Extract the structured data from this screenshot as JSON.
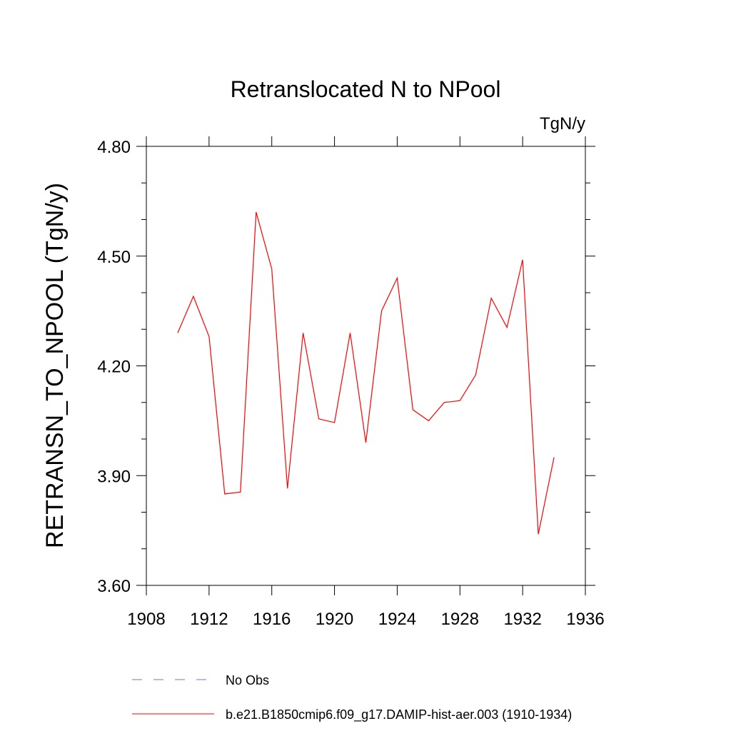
{
  "chart_data": {
    "type": "line",
    "title": "Retranslocated N to NPool",
    "units_label": "TgN/y",
    "ylabel": "RETRANSN_TO_NPOOL  (TgN/y)",
    "xlabel": "",
    "xlim": [
      1908,
      1936
    ],
    "ylim": [
      3.6,
      4.8
    ],
    "x_ticks": [
      1908,
      1912,
      1916,
      1920,
      1924,
      1928,
      1932,
      1936
    ],
    "x_tick_labels": [
      "1908",
      "1912",
      "1916",
      "1920",
      "1924",
      "1928",
      "1932",
      "1936"
    ],
    "y_ticks": [
      3.6,
      3.9,
      4.2,
      4.5,
      4.8
    ],
    "y_tick_labels": [
      "3.60",
      "3.90",
      "4.20",
      "4.50",
      "4.80"
    ],
    "grid": false,
    "legend_position": "bottom",
    "legend": [
      {
        "label": "No Obs",
        "color": "#7b6fd6",
        "style": "dashed"
      },
      {
        "label": "b.e21.B1850cmip6.f09_g17.DAMIP-hist-aer.003 (1910-1934)",
        "color": "#ff0000",
        "style": "solid"
      }
    ],
    "series": [
      {
        "name": "b.e21.B1850cmip6.f09_g17.DAMIP-hist-aer.003 (1910-1934)",
        "color": "#ff0000",
        "x": [
          1910,
          1911,
          1912,
          1913,
          1914,
          1915,
          1916,
          1917,
          1918,
          1919,
          1920,
          1921,
          1922,
          1923,
          1924,
          1925,
          1926,
          1927,
          1928,
          1929,
          1930,
          1931,
          1932,
          1933,
          1934
        ],
        "values": [
          4.29,
          4.39,
          4.28,
          3.85,
          3.855,
          4.62,
          4.465,
          3.865,
          4.29,
          4.055,
          4.045,
          4.29,
          3.99,
          4.35,
          4.44,
          4.08,
          4.05,
          4.1,
          4.105,
          4.175,
          4.385,
          4.305,
          4.49,
          3.74,
          3.95
        ]
      }
    ]
  }
}
